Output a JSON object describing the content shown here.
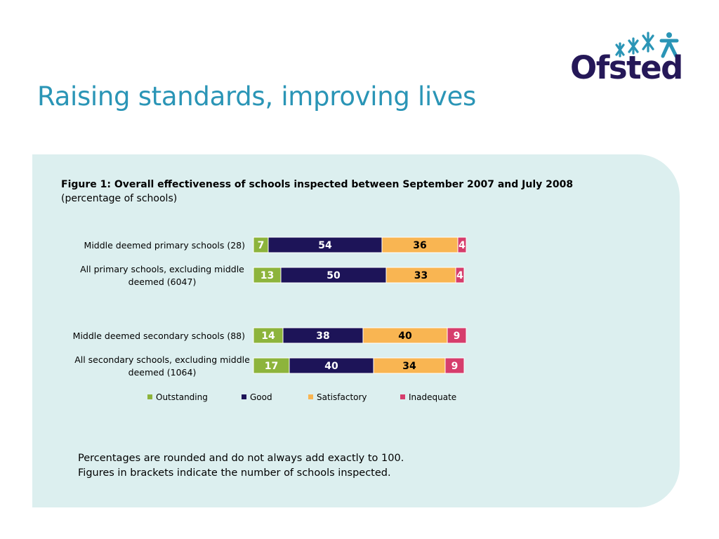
{
  "page": {
    "title": "Raising standards, improving lives",
    "logo_text": "Ofsted"
  },
  "figure": {
    "title": "Figure 1: Overall effectiveness of schools inspected between September 2007 and July 2008",
    "subtitle": "(percentage of schools)"
  },
  "notes": [
    "Percentages are rounded and do not always add exactly to 100.",
    "Figures in brackets indicate the number of schools inspected."
  ],
  "colors": {
    "title": "#2a95b6",
    "panel": "#dcefef",
    "logo": "#251858"
  },
  "chart_data": {
    "type": "bar",
    "orientation": "horizontal",
    "stacked": true,
    "categories": [
      [
        "Middle deemed primary schools (28)"
      ],
      [
        "All primary schools, excluding middle",
        "deemed (6047)"
      ],
      [
        "Middle deemed secondary schools (88)"
      ],
      [
        "All secondary schools, excluding middle",
        "deemed (1064)"
      ]
    ],
    "series": [
      {
        "name": "Outstanding",
        "color": "#8db43c",
        "label_color": "#ffffff",
        "values": [
          7,
          13,
          14,
          17
        ]
      },
      {
        "name": "Good",
        "color": "#1d1458",
        "label_color": "#ffffff",
        "values": [
          54,
          50,
          38,
          40
        ]
      },
      {
        "name": "Satisfactory",
        "color": "#f9b552",
        "label_color": "#000000",
        "values": [
          36,
          33,
          40,
          34
        ]
      },
      {
        "name": "Inadequate",
        "color": "#d63d6c",
        "label_color": "#ffffff",
        "values": [
          4,
          4,
          9,
          9
        ]
      }
    ],
    "data_labels": true,
    "legend": "bottom",
    "grid": false
  }
}
